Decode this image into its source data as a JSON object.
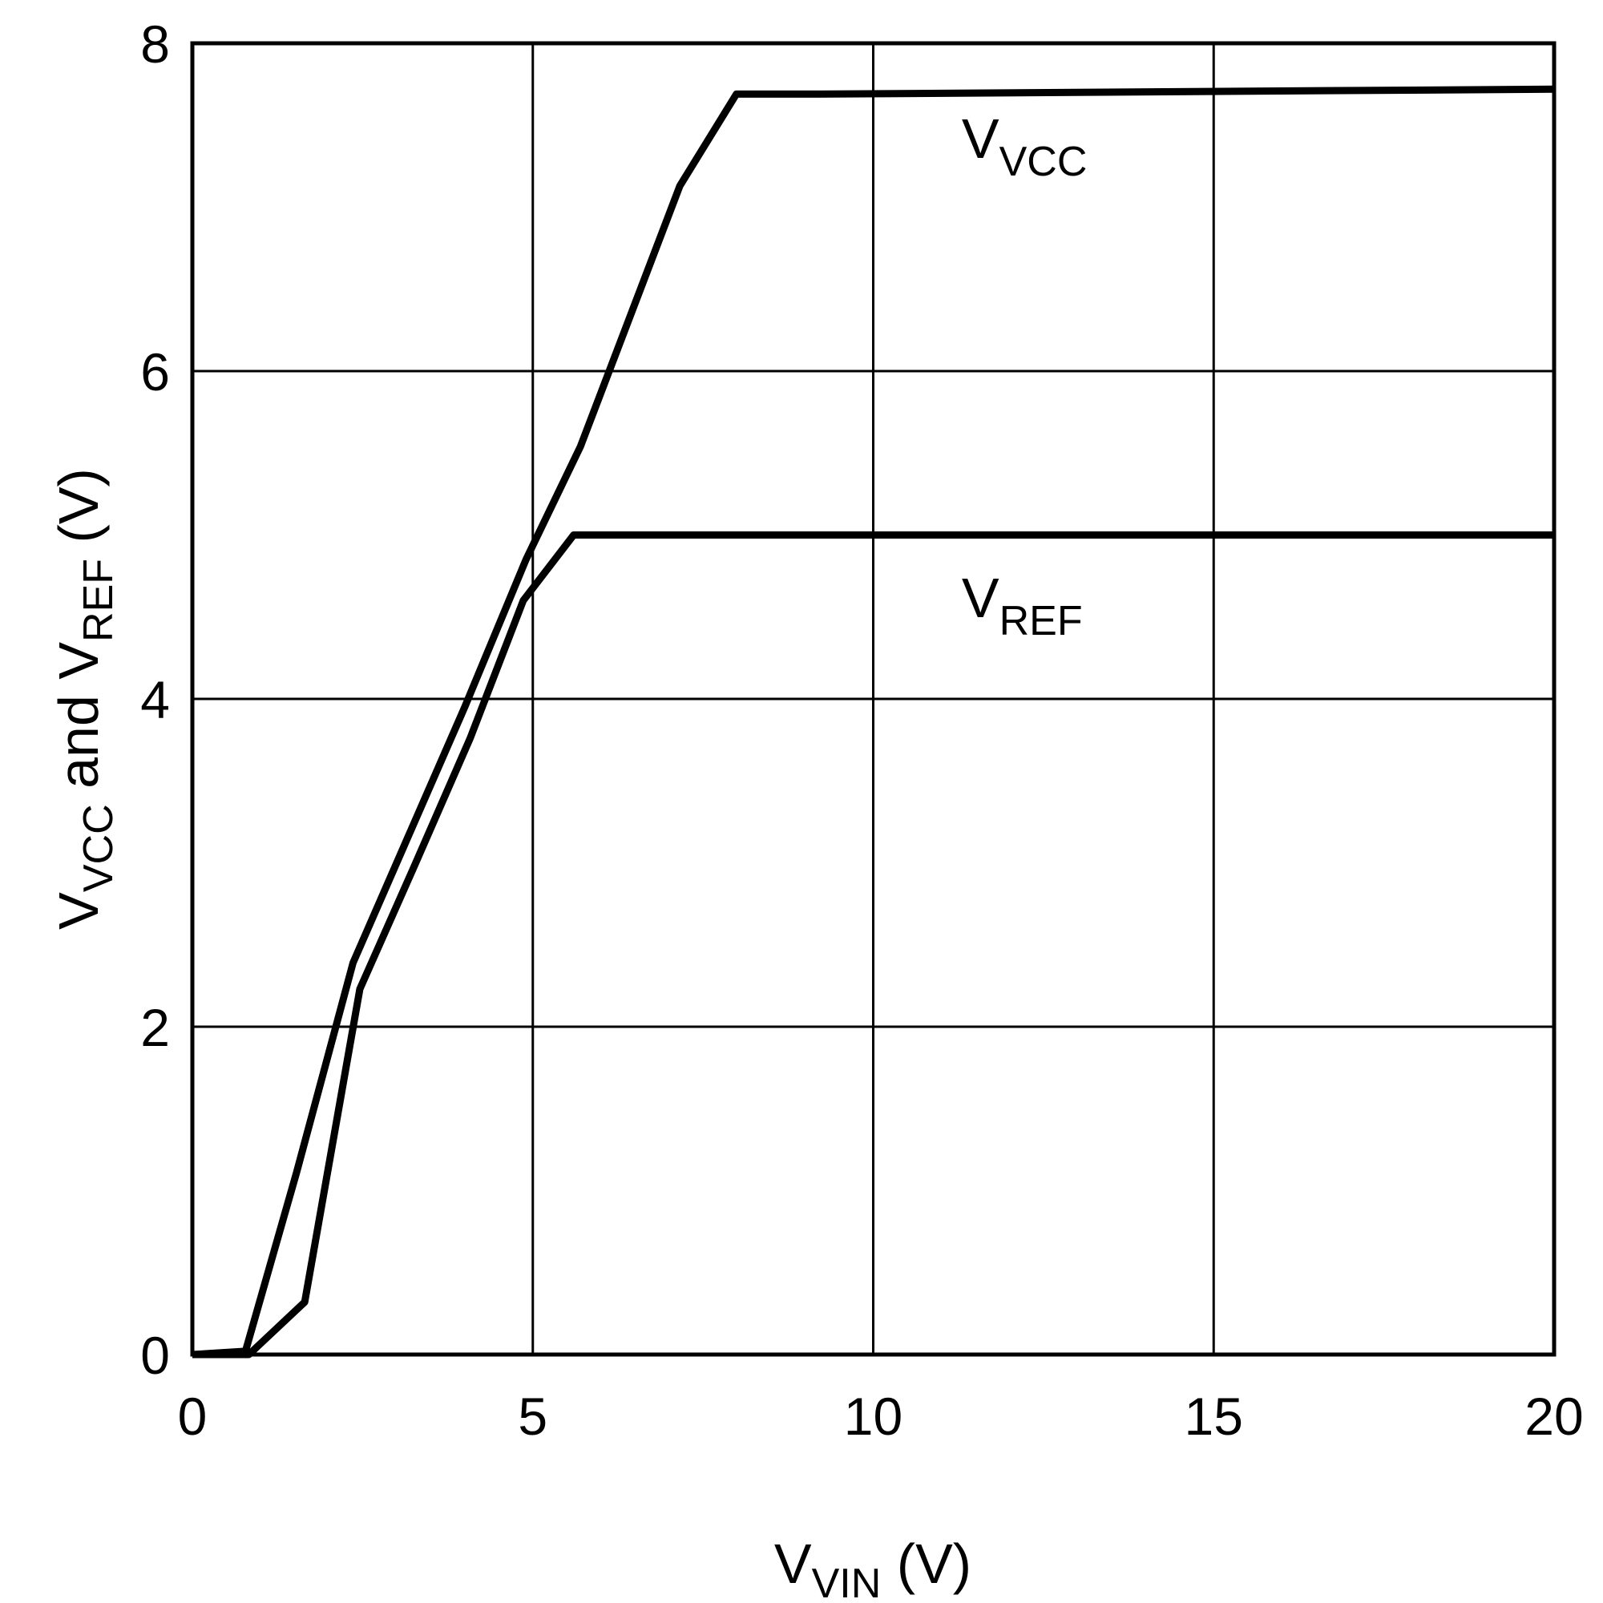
{
  "chart_data": {
    "type": "line",
    "title": "",
    "xlabel": {
      "main": "V",
      "sub": "VIN",
      "unit": " (V)"
    },
    "ylabel": {
      "p1": "V",
      "s1": "VCC",
      "p2": " and V",
      "s2": "REF",
      "unit": " (V)"
    },
    "xlim": [
      0,
      20
    ],
    "ylim": [
      0,
      8
    ],
    "xticks": [
      "0",
      "5",
      "10",
      "15",
      "20"
    ],
    "yticks": [
      "0",
      "2",
      "4",
      "6",
      "8"
    ],
    "xtick_values": [
      0,
      5,
      10,
      15,
      20
    ],
    "ytick_values": [
      0,
      2,
      4,
      6,
      8
    ],
    "grid": true,
    "series": [
      {
        "name": "VVCC",
        "label_main": "V",
        "label_sub": "VCC",
        "x": [
          0,
          0.78,
          1.53,
          2.36,
          3.18,
          4.0,
          4.9,
          5.7,
          7.16,
          7.99,
          9.2,
          20
        ],
        "y": [
          0,
          0.02,
          1.11,
          2.39,
          3.17,
          3.95,
          4.85,
          5.54,
          7.13,
          7.69,
          7.69,
          7.72
        ],
        "label_at": [
          11.3,
          7.3
        ]
      },
      {
        "name": "VREF",
        "label_main": "V",
        "label_sub": "REF",
        "x": [
          0,
          0.83,
          1.65,
          2.46,
          3.26,
          4.08,
          4.86,
          5.6,
          20
        ],
        "y": [
          0,
          0,
          0.32,
          2.23,
          2.98,
          3.76,
          4.6,
          5.0,
          5.0
        ],
        "label_at": [
          11.3,
          4.5
        ]
      }
    ],
    "color": "#000000"
  }
}
